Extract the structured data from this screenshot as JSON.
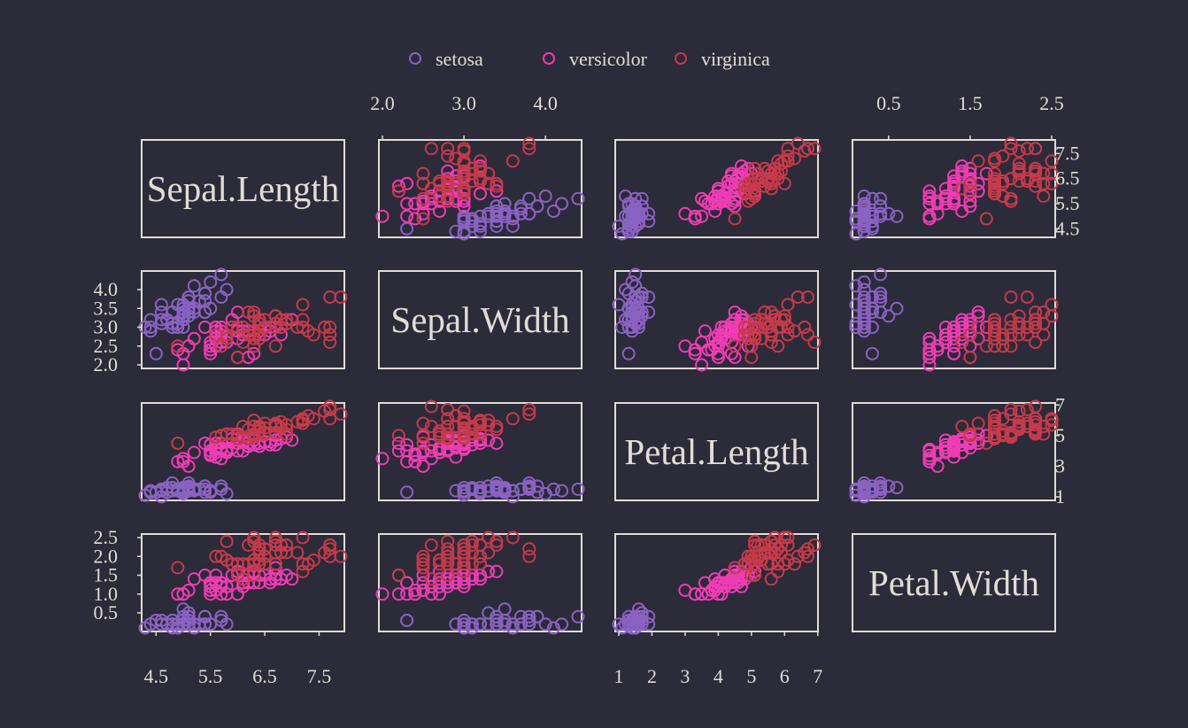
{
  "colors": {
    "background": "#2b2b3a",
    "axis": "#e2dcd5",
    "text": "#e2dcd5",
    "setosa": "#8a62c2",
    "versicolor": "#f03cb4",
    "virginica": "#c63a4a"
  },
  "chart_data": {
    "type": "scatter",
    "subtype": "pairs-matrix",
    "legend": {
      "placement": "top",
      "entries": [
        "setosa",
        "versicolor",
        "virginica"
      ]
    },
    "variables": [
      {
        "name": "Sepal.Length",
        "range": [
          4.3,
          7.9
        ],
        "ticks": [
          "4.5",
          "5.5",
          "6.5",
          "7.5"
        ]
      },
      {
        "name": "Sepal.Width",
        "range": [
          2.0,
          4.4
        ],
        "ticks": [
          "2.0",
          "2.5",
          "3.0",
          "3.5",
          "4.0"
        ]
      },
      {
        "name": "Petal.Length",
        "range": [
          1.0,
          6.9
        ],
        "ticks": [
          "1",
          "2",
          "3",
          "4",
          "5",
          "6",
          "7"
        ]
      },
      {
        "name": "Petal.Width",
        "range": [
          0.1,
          2.5
        ],
        "ticks": [
          "0.5",
          "1.0",
          "1.5",
          "2.0",
          "2.5"
        ]
      }
    ],
    "axis_labels": {
      "top": [
        {
          "variable": 1,
          "ticks": [
            "2.0",
            "3.0",
            "4.0"
          ]
        },
        {
          "variable": 3,
          "ticks": [
            "0.5",
            "1.5",
            "2.5"
          ]
        }
      ],
      "bottom": [
        {
          "variable": 0,
          "ticks": [
            "4.5",
            "5.5",
            "6.5",
            "7.5"
          ]
        },
        {
          "variable": 2,
          "ticks": [
            "1",
            "2",
            "3",
            "4",
            "5",
            "6",
            "7"
          ]
        }
      ],
      "left": [
        {
          "variable": 1,
          "ticks": [
            "2.0",
            "2.5",
            "3.0",
            "3.5",
            "4.0"
          ]
        },
        {
          "variable": 3,
          "ticks": [
            "0.5",
            "1.0",
            "1.5",
            "2.0",
            "2.5"
          ]
        }
      ],
      "right": [
        {
          "variable": 0,
          "ticks": [
            "4.5",
            "5.5",
            "6.5",
            "7.5"
          ]
        },
        {
          "variable": 2,
          "ticks": [
            "1",
            "3",
            "5",
            "7"
          ]
        }
      ]
    },
    "species": [
      "setosa",
      "versicolor",
      "virginica"
    ],
    "points": {
      "setosa": [
        [
          5.1,
          3.5,
          1.4,
          0.2
        ],
        [
          4.9,
          3.0,
          1.4,
          0.2
        ],
        [
          4.7,
          3.2,
          1.3,
          0.2
        ],
        [
          4.6,
          3.1,
          1.5,
          0.2
        ],
        [
          5.0,
          3.6,
          1.4,
          0.2
        ],
        [
          5.4,
          3.9,
          1.7,
          0.4
        ],
        [
          4.6,
          3.4,
          1.4,
          0.3
        ],
        [
          5.0,
          3.4,
          1.5,
          0.2
        ],
        [
          4.4,
          2.9,
          1.4,
          0.2
        ],
        [
          4.9,
          3.1,
          1.5,
          0.1
        ],
        [
          5.4,
          3.7,
          1.5,
          0.2
        ],
        [
          4.8,
          3.4,
          1.6,
          0.2
        ],
        [
          4.8,
          3.0,
          1.4,
          0.1
        ],
        [
          4.3,
          3.0,
          1.1,
          0.1
        ],
        [
          5.8,
          4.0,
          1.2,
          0.2
        ],
        [
          5.7,
          4.4,
          1.5,
          0.4
        ],
        [
          5.4,
          3.9,
          1.3,
          0.4
        ],
        [
          5.1,
          3.5,
          1.4,
          0.3
        ],
        [
          5.7,
          3.8,
          1.7,
          0.3
        ],
        [
          5.1,
          3.8,
          1.5,
          0.3
        ],
        [
          5.4,
          3.4,
          1.7,
          0.2
        ],
        [
          5.1,
          3.7,
          1.5,
          0.4
        ],
        [
          4.6,
          3.6,
          1.0,
          0.2
        ],
        [
          5.1,
          3.3,
          1.7,
          0.5
        ],
        [
          4.8,
          3.4,
          1.9,
          0.2
        ],
        [
          5.0,
          3.0,
          1.6,
          0.2
        ],
        [
          5.0,
          3.4,
          1.6,
          0.4
        ],
        [
          5.2,
          3.5,
          1.5,
          0.2
        ],
        [
          5.2,
          3.4,
          1.4,
          0.2
        ],
        [
          4.7,
          3.2,
          1.6,
          0.2
        ],
        [
          4.8,
          3.1,
          1.6,
          0.2
        ],
        [
          5.4,
          3.4,
          1.5,
          0.4
        ],
        [
          5.2,
          4.1,
          1.5,
          0.1
        ],
        [
          5.5,
          4.2,
          1.4,
          0.2
        ],
        [
          4.9,
          3.1,
          1.5,
          0.2
        ],
        [
          5.0,
          3.2,
          1.2,
          0.2
        ],
        [
          5.5,
          3.5,
          1.3,
          0.2
        ],
        [
          4.9,
          3.6,
          1.4,
          0.1
        ],
        [
          4.4,
          3.0,
          1.3,
          0.2
        ],
        [
          5.1,
          3.4,
          1.5,
          0.2
        ],
        [
          5.0,
          3.5,
          1.3,
          0.3
        ],
        [
          4.5,
          2.3,
          1.3,
          0.3
        ],
        [
          4.4,
          3.2,
          1.3,
          0.2
        ],
        [
          5.0,
          3.5,
          1.6,
          0.6
        ],
        [
          5.1,
          3.8,
          1.9,
          0.4
        ],
        [
          4.8,
          3.0,
          1.4,
          0.3
        ],
        [
          5.1,
          3.8,
          1.6,
          0.2
        ],
        [
          4.6,
          3.2,
          1.4,
          0.2
        ],
        [
          5.3,
          3.7,
          1.5,
          0.2
        ],
        [
          5.0,
          3.3,
          1.4,
          0.2
        ]
      ],
      "versicolor": [
        [
          7.0,
          3.2,
          4.7,
          1.4
        ],
        [
          6.4,
          3.2,
          4.5,
          1.5
        ],
        [
          6.9,
          3.1,
          4.9,
          1.5
        ],
        [
          5.5,
          2.3,
          4.0,
          1.3
        ],
        [
          6.5,
          2.8,
          4.6,
          1.5
        ],
        [
          5.7,
          2.8,
          4.5,
          1.3
        ],
        [
          6.3,
          3.3,
          4.7,
          1.6
        ],
        [
          4.9,
          2.4,
          3.3,
          1.0
        ],
        [
          6.6,
          2.9,
          4.6,
          1.3
        ],
        [
          5.2,
          2.7,
          3.9,
          1.4
        ],
        [
          5.0,
          2.0,
          3.5,
          1.0
        ],
        [
          5.9,
          3.0,
          4.2,
          1.5
        ],
        [
          6.0,
          2.2,
          4.0,
          1.0
        ],
        [
          6.1,
          2.9,
          4.7,
          1.4
        ],
        [
          5.6,
          2.9,
          3.6,
          1.3
        ],
        [
          6.7,
          3.1,
          4.4,
          1.4
        ],
        [
          5.6,
          3.0,
          4.5,
          1.5
        ],
        [
          5.8,
          2.7,
          4.1,
          1.0
        ],
        [
          6.2,
          2.2,
          4.5,
          1.5
        ],
        [
          5.6,
          2.5,
          3.9,
          1.1
        ],
        [
          5.9,
          3.2,
          4.8,
          1.8
        ],
        [
          6.1,
          2.8,
          4.0,
          1.3
        ],
        [
          6.3,
          2.5,
          4.9,
          1.5
        ],
        [
          6.1,
          2.8,
          4.7,
          1.2
        ],
        [
          6.4,
          2.9,
          4.3,
          1.3
        ],
        [
          6.6,
          3.0,
          4.4,
          1.4
        ],
        [
          6.8,
          2.8,
          4.8,
          1.4
        ],
        [
          6.7,
          3.0,
          5.0,
          1.7
        ],
        [
          6.0,
          2.9,
          4.5,
          1.5
        ],
        [
          5.7,
          2.6,
          3.5,
          1.0
        ],
        [
          5.5,
          2.4,
          3.8,
          1.1
        ],
        [
          5.5,
          2.4,
          3.7,
          1.0
        ],
        [
          5.8,
          2.7,
          3.9,
          1.2
        ],
        [
          6.0,
          2.7,
          5.1,
          1.6
        ],
        [
          5.4,
          3.0,
          4.5,
          1.5
        ],
        [
          6.0,
          3.4,
          4.5,
          1.6
        ],
        [
          6.7,
          3.1,
          4.7,
          1.5
        ],
        [
          6.3,
          2.3,
          4.4,
          1.3
        ],
        [
          5.6,
          3.0,
          4.1,
          1.3
        ],
        [
          5.5,
          2.5,
          4.0,
          1.3
        ],
        [
          5.5,
          2.6,
          4.4,
          1.2
        ],
        [
          6.1,
          3.0,
          4.6,
          1.4
        ],
        [
          5.8,
          2.6,
          4.0,
          1.2
        ],
        [
          5.0,
          2.3,
          3.3,
          1.0
        ],
        [
          5.6,
          2.7,
          4.2,
          1.3
        ],
        [
          5.7,
          3.0,
          4.2,
          1.2
        ],
        [
          5.7,
          2.9,
          4.2,
          1.3
        ],
        [
          6.2,
          2.9,
          4.3,
          1.3
        ],
        [
          5.1,
          2.5,
          3.0,
          1.1
        ],
        [
          5.7,
          2.8,
          4.1,
          1.3
        ]
      ],
      "virginica": [
        [
          6.3,
          3.3,
          6.0,
          2.5
        ],
        [
          5.8,
          2.7,
          5.1,
          1.9
        ],
        [
          7.1,
          3.0,
          5.9,
          2.1
        ],
        [
          6.3,
          2.9,
          5.6,
          1.8
        ],
        [
          6.5,
          3.0,
          5.8,
          2.2
        ],
        [
          7.6,
          3.0,
          6.6,
          2.1
        ],
        [
          4.9,
          2.5,
          4.5,
          1.7
        ],
        [
          7.3,
          2.9,
          6.3,
          1.8
        ],
        [
          6.7,
          2.5,
          5.8,
          1.8
        ],
        [
          7.2,
          3.6,
          6.1,
          2.5
        ],
        [
          6.5,
          3.2,
          5.1,
          2.0
        ],
        [
          6.4,
          2.7,
          5.3,
          1.9
        ],
        [
          6.8,
          3.0,
          5.5,
          2.1
        ],
        [
          5.7,
          2.5,
          5.0,
          2.0
        ],
        [
          5.8,
          2.8,
          5.1,
          2.4
        ],
        [
          6.4,
          3.2,
          5.3,
          2.3
        ],
        [
          6.5,
          3.0,
          5.5,
          1.8
        ],
        [
          7.7,
          3.8,
          6.7,
          2.2
        ],
        [
          7.7,
          2.6,
          6.9,
          2.3
        ],
        [
          6.0,
          2.2,
          5.0,
          1.5
        ],
        [
          6.9,
          3.2,
          5.7,
          2.3
        ],
        [
          5.6,
          2.8,
          4.9,
          2.0
        ],
        [
          7.7,
          2.8,
          6.7,
          2.0
        ],
        [
          6.3,
          2.7,
          4.9,
          1.8
        ],
        [
          6.7,
          3.3,
          5.7,
          2.1
        ],
        [
          7.2,
          3.2,
          6.0,
          1.8
        ],
        [
          6.2,
          2.8,
          4.8,
          1.8
        ],
        [
          6.1,
          3.0,
          4.9,
          1.8
        ],
        [
          6.4,
          2.8,
          5.6,
          2.1
        ],
        [
          7.2,
          3.0,
          5.8,
          1.6
        ],
        [
          7.4,
          2.8,
          6.1,
          1.9
        ],
        [
          7.9,
          3.8,
          6.4,
          2.0
        ],
        [
          6.4,
          2.8,
          5.6,
          2.2
        ],
        [
          6.3,
          2.8,
          5.1,
          1.5
        ],
        [
          6.1,
          2.6,
          5.6,
          1.4
        ],
        [
          7.7,
          3.0,
          6.1,
          2.3
        ],
        [
          6.3,
          3.4,
          5.6,
          2.4
        ],
        [
          6.4,
          3.1,
          5.5,
          1.8
        ],
        [
          6.0,
          3.0,
          4.8,
          1.8
        ],
        [
          6.9,
          3.1,
          5.4,
          2.1
        ],
        [
          6.7,
          3.1,
          5.6,
          2.4
        ],
        [
          6.9,
          3.1,
          5.1,
          2.3
        ],
        [
          5.8,
          2.7,
          5.1,
          1.9
        ],
        [
          6.8,
          3.2,
          5.9,
          2.3
        ],
        [
          6.7,
          3.3,
          5.7,
          2.5
        ],
        [
          6.7,
          3.0,
          5.2,
          2.3
        ],
        [
          6.3,
          2.5,
          5.0,
          1.9
        ],
        [
          6.5,
          3.0,
          5.2,
          2.0
        ],
        [
          6.2,
          3.4,
          5.4,
          2.3
        ],
        [
          5.9,
          3.0,
          5.1,
          1.8
        ]
      ]
    }
  }
}
